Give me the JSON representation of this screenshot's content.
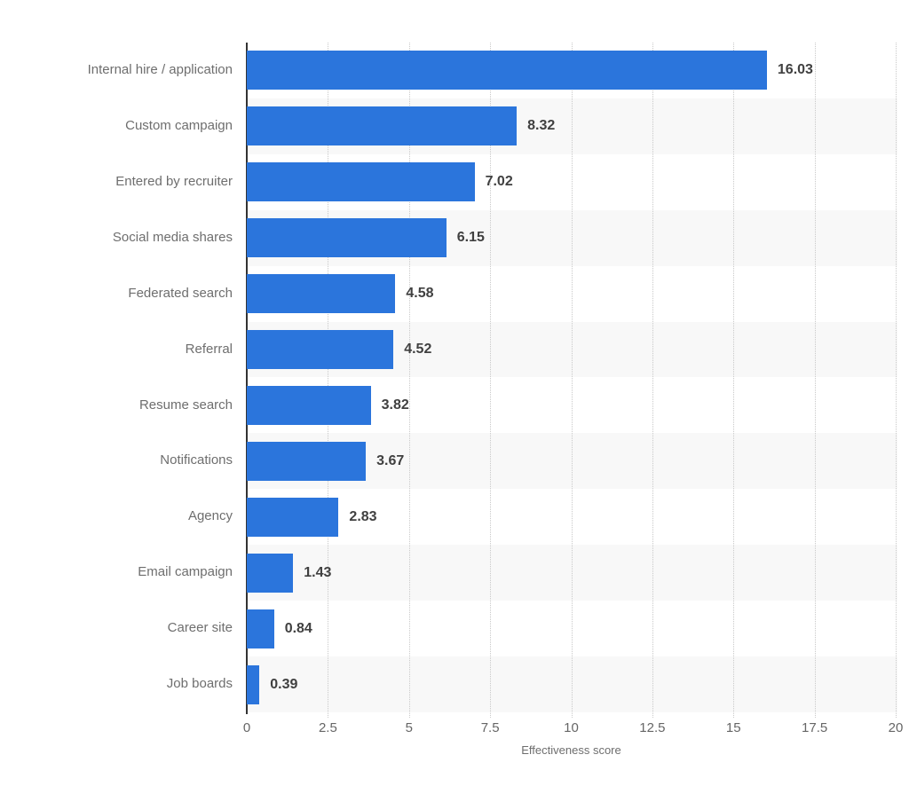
{
  "chart_data": {
    "type": "bar",
    "orientation": "horizontal",
    "title": "",
    "xlabel": "Effectiveness score",
    "ylabel": "",
    "categories": [
      "Internal hire / application",
      "Custom campaign",
      "Entered by recruiter",
      "Social media shares",
      "Federated search",
      "Referral",
      "Resume search",
      "Notifications",
      "Agency",
      "Email campaign",
      "Career site",
      "Job boards"
    ],
    "values": [
      16.03,
      8.32,
      7.02,
      6.15,
      4.58,
      4.52,
      3.82,
      3.67,
      2.83,
      1.43,
      0.84,
      0.39
    ],
    "value_labels": [
      "16.03",
      "8.32",
      "7.02",
      "6.15",
      "4.58",
      "4.52",
      "3.82",
      "3.67",
      "2.83",
      "1.43",
      "0.84",
      "0.39"
    ],
    "xlim": [
      0,
      20
    ],
    "xticks": [
      0,
      2.5,
      5,
      7.5,
      10,
      12.5,
      15,
      17.5,
      20
    ],
    "xtick_labels": [
      "0",
      "2.5",
      "5",
      "7.5",
      "10",
      "12.5",
      "15",
      "17.5",
      "20"
    ],
    "grid": "vertical-dotted",
    "legend": "none",
    "colors": {
      "bar": "#2b75dc",
      "row_band": "#f8f8f8",
      "axis_line": "#333333",
      "gridline": "#c9c9c9",
      "category_label": "#6e6e6e",
      "value_label": "#404040",
      "tick_label": "#666666"
    }
  }
}
